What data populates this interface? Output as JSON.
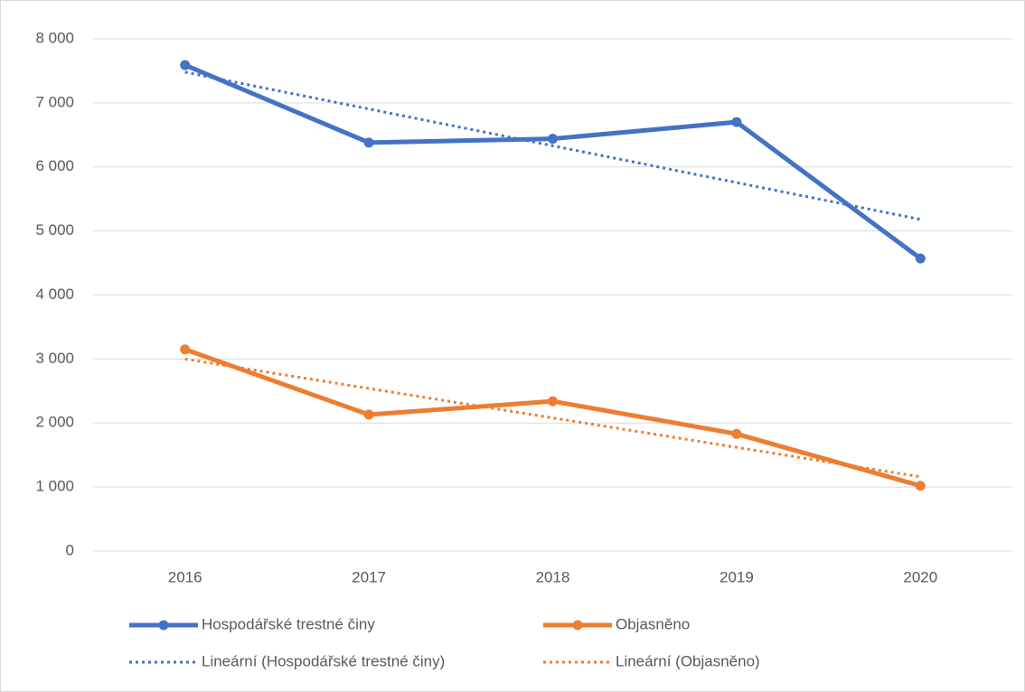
{
  "chart_data": {
    "type": "line",
    "categories": [
      "2016",
      "2017",
      "2018",
      "2019",
      "2020"
    ],
    "series": [
      {
        "name": "Hospodářské trestné činy",
        "color": "#4472c4",
        "style": "solid",
        "markers": true,
        "values": [
          7590,
          6380,
          6440,
          6700,
          4570
        ]
      },
      {
        "name": "Objasněno",
        "color": "#ed7d31",
        "style": "solid",
        "markers": true,
        "values": [
          3150,
          2130,
          2340,
          1830,
          1020
        ]
      },
      {
        "name": "Lineární (Hospodářské trestné činy)",
        "color": "#4472c4",
        "style": "dotted",
        "markers": false,
        "values": [
          7480,
          6905,
          6330,
          5755,
          5180
        ]
      },
      {
        "name": "Lineární (Objasněno)",
        "color": "#ed7d31",
        "style": "dotted",
        "markers": false,
        "values": [
          3000,
          2540,
          2080,
          1620,
          1160
        ]
      }
    ],
    "ylim": [
      0,
      8000
    ],
    "yticks": [
      0,
      {
        "value": 1000,
        "label": "1 000"
      },
      {
        "value": 2000,
        "label": "2 000"
      },
      {
        "value": 3000,
        "label": "3 000"
      },
      {
        "value": 4000,
        "label": "4 000"
      },
      {
        "value": 5000,
        "label": "5 000"
      },
      {
        "value": 6000,
        "label": "6 000"
      },
      {
        "value": 7000,
        "label": "7 000"
      },
      {
        "value": 8000,
        "label": "8 000"
      }
    ],
    "grid": true,
    "legend": "bottom"
  }
}
